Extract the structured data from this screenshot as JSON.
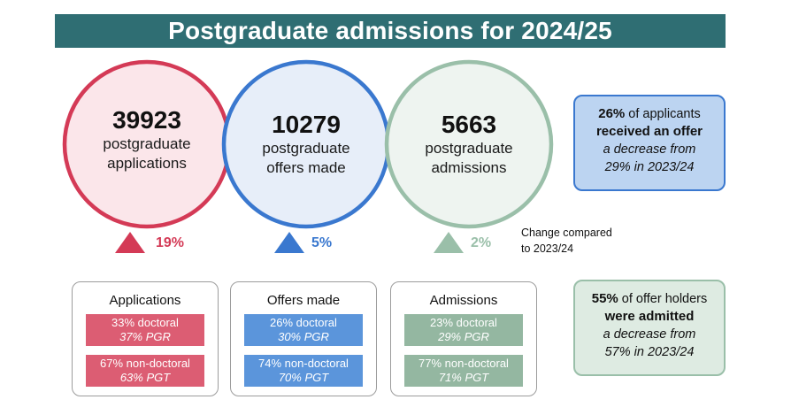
{
  "title": "Postgraduate admissions for 2024/25",
  "colors": {
    "title_bg": "#2f6e73",
    "applications": "#d43a56",
    "offers": "#3a78cf",
    "admissions": "#9abfa9"
  },
  "stages": [
    {
      "value": "39923",
      "line1": "postgraduate",
      "line2": "applications",
      "change": "19%",
      "direction": "up"
    },
    {
      "value": "10279",
      "line1": "postgraduate",
      "line2": "offers made",
      "change": "5%",
      "direction": "up"
    },
    {
      "value": "5663",
      "line1": "postgraduate",
      "line2": "admissions",
      "change": "2%",
      "direction": "up"
    }
  ],
  "change_note": {
    "line1": "Change compared",
    "line2": "to 2023/24"
  },
  "offer_rate": {
    "pct": "26%",
    "rest1": " of applicants",
    "bold2": "received an offer",
    "ital3": "a decrease from",
    "ital4": "29% in 2023/24"
  },
  "admit_rate": {
    "pct": "55%",
    "rest1": " of offer holders",
    "bold2": "were admitted",
    "ital3": "a decrease from",
    "ital4": "57% in 2023/24"
  },
  "breakdowns": [
    {
      "title": "Applications",
      "doctoral": "33% doctoral",
      "pgr": "37% PGR",
      "non_doctoral": "67% non-doctoral",
      "pgt": "63% PGT"
    },
    {
      "title": "Offers made",
      "doctoral": "26% doctoral",
      "pgr": "30% PGR",
      "non_doctoral": "74% non-doctoral",
      "pgt": "70% PGT"
    },
    {
      "title": "Admissions",
      "doctoral": "23% doctoral",
      "pgr": "29% PGR",
      "non_doctoral": "77% non-doctoral",
      "pgt": "71% PGT"
    }
  ]
}
